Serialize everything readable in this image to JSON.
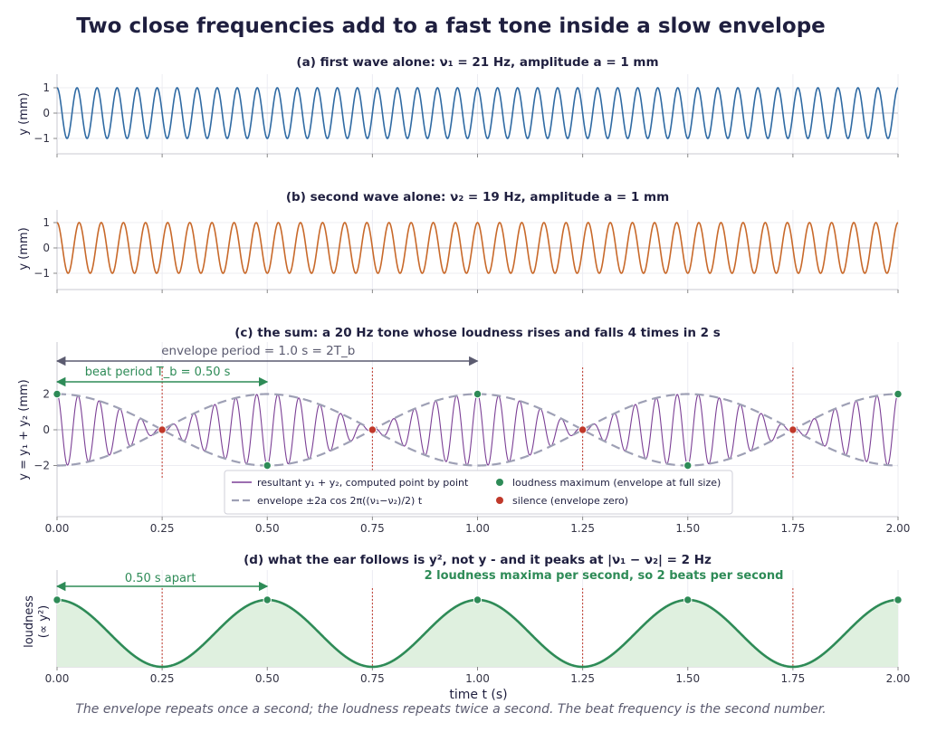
{
  "title": "Two close frequencies add to a fast tone inside a slow envelope",
  "caption": "The envelope repeats once a second; the loudness repeats twice a second. The beat frequency is the second number.",
  "colors": {
    "wave1": "#2f6aa3",
    "wave2": "#c8692a",
    "sum": "#7b3f95",
    "envelope": "#9ea0b5",
    "loudness": "#2e8b57",
    "loudness_fill": "#dff0df",
    "maximum": "#2e8b57",
    "silence": "#c0392b",
    "annotation_grey": "#5b5b70"
  },
  "chart_data": [
    {
      "panel": "a",
      "type": "line",
      "title": "(a)  first wave alone:  ν₁ = 21 Hz, amplitude a = 1 mm",
      "ylabel": "y (mm)",
      "xlim": [
        0,
        2
      ],
      "ylim": [
        -1.6,
        1.6
      ],
      "yticks": [
        "1",
        "0",
        "−1"
      ],
      "xticks": [
        "0.00",
        "0.25",
        "0.50",
        "0.75",
        "1.00",
        "1.25",
        "1.50",
        "1.75",
        "2.00"
      ],
      "show_xtick_labels": false,
      "series": [
        {
          "function": "cos",
          "frequency_hz": 21,
          "amplitude_mm": 1
        }
      ]
    },
    {
      "panel": "b",
      "type": "line",
      "title": "(b)  second wave alone:  ν₂ = 19 Hz, amplitude a = 1 mm",
      "ylabel": "y (mm)",
      "xlim": [
        0,
        2
      ],
      "ylim": [
        -1.6,
        1.6
      ],
      "yticks": [
        "1",
        "0",
        "−1"
      ],
      "xticks": [
        "0.00",
        "0.25",
        "0.50",
        "0.75",
        "1.00",
        "1.25",
        "1.50",
        "1.75",
        "2.00"
      ],
      "show_xtick_labels": false,
      "series": [
        {
          "function": "cos",
          "frequency_hz": 19,
          "amplitude_mm": 1
        }
      ]
    },
    {
      "panel": "c",
      "type": "line",
      "title": "(c)  the sum: a 20 Hz tone whose loudness rises and falls 4 times in 2 s",
      "ylabel": "y = y₁ + y₂  (mm)",
      "xlim": [
        0,
        2
      ],
      "ylim": [
        -4.9,
        4.3
      ],
      "yticks": [
        "2",
        "0",
        "−2"
      ],
      "xticks": [
        "0.00",
        "0.25",
        "0.50",
        "0.75",
        "1.00",
        "1.25",
        "1.50",
        "1.75",
        "2.00"
      ],
      "show_xtick_labels": true,
      "series": [
        {
          "name": "resultant y₁ + y₂, computed point by point",
          "function": "cos21+cos19"
        },
        {
          "name": "envelope ±2a cos 2π((ν₁−ν₂)/2) t",
          "function": "envelope",
          "amplitude_mm": 2,
          "frequency_hz": 1
        }
      ],
      "maxima_t": [
        0,
        0.5,
        1.0,
        1.5,
        2.0
      ],
      "silence_t": [
        0.25,
        0.75,
        1.25,
        1.75
      ],
      "annotations": [
        {
          "text": "envelope period = 1.0 s = 2T_b",
          "t_start": 0,
          "t_end": 1.0
        },
        {
          "text": "beat period T_b = 0.50 s",
          "t_start": 0,
          "t_end": 0.5
        }
      ],
      "legend": {
        "placement": "lower-center",
        "entries": [
          {
            "label": "resultant y₁ + y₂, computed point by point",
            "kind": "line"
          },
          {
            "label": "loudness maximum (envelope at full size)",
            "kind": "marker-green"
          },
          {
            "label": "envelope ±2a cos 2π((ν₁−ν₂)/2) t",
            "kind": "dashed"
          },
          {
            "label": "silence (envelope zero)",
            "kind": "marker-red"
          }
        ]
      }
    },
    {
      "panel": "d",
      "type": "area",
      "title": "(d)  what the ear follows is y², not y - and it peaks at |ν₁ − ν₂| = 2 Hz",
      "ylabel": "loudness",
      "ylabel2": "(∝ y²)",
      "xlabel": "time t (s)",
      "xlim": [
        0,
        2
      ],
      "xticks": [
        "0.00",
        "0.25",
        "0.50",
        "0.75",
        "1.00",
        "1.25",
        "1.50",
        "1.75",
        "2.00"
      ],
      "series": [
        {
          "function": "cos²(2π·1·t)",
          "frequency_hz": 2
        }
      ],
      "maxima_t": [
        0,
        0.5,
        1.0,
        1.5,
        2.0
      ],
      "silence_t": [
        0.25,
        0.75,
        1.25,
        1.75
      ],
      "annotations": [
        {
          "text": "0.50 s apart",
          "t_start": 0,
          "t_end": 0.5
        },
        {
          "text": "2 loudness maxima per second, so 2 beats per second"
        }
      ]
    }
  ]
}
